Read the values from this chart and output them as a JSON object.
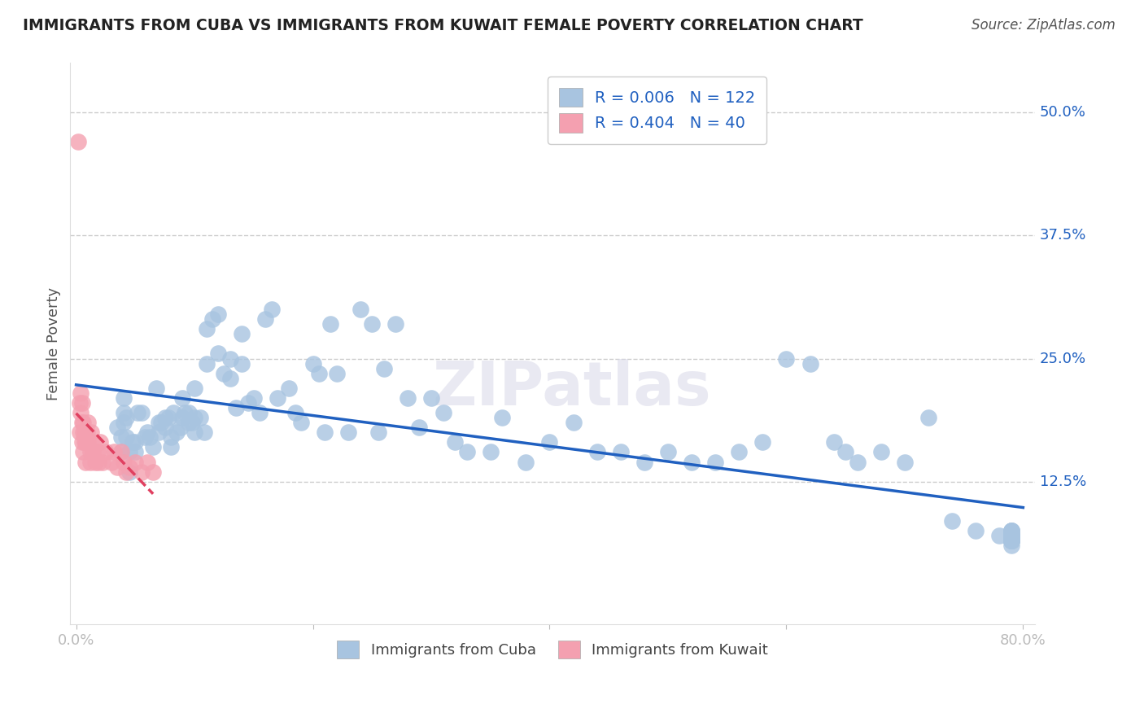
{
  "title": "IMMIGRANTS FROM CUBA VS IMMIGRANTS FROM KUWAIT FEMALE POVERTY CORRELATION CHART",
  "source": "Source: ZipAtlas.com",
  "ylabel": "Female Poverty",
  "xlim": [
    0.0,
    0.8
  ],
  "ylim": [
    -0.02,
    0.55
  ],
  "ytick_values_right": [
    0.5,
    0.375,
    0.25,
    0.125
  ],
  "ytick_labels_right": [
    "50.0%",
    "37.5%",
    "25.0%",
    "12.5%"
  ],
  "grid_color": "#cccccc",
  "background_color": "#ffffff",
  "cuba_color": "#a8c4e0",
  "kuwait_color": "#f4a0b0",
  "cuba_line_color": "#2060c0",
  "kuwait_line_color": "#e04060",
  "cuba_R": 0.006,
  "cuba_N": 122,
  "kuwait_R": 0.404,
  "kuwait_N": 40,
  "legend_label_color": "#2060c0",
  "watermark": "ZIPatlas",
  "cuba_x": [
    0.035,
    0.038,
    0.038,
    0.04,
    0.04,
    0.04,
    0.042,
    0.042,
    0.045,
    0.045,
    0.048,
    0.05,
    0.05,
    0.052,
    0.055,
    0.058,
    0.06,
    0.062,
    0.065,
    0.068,
    0.07,
    0.07,
    0.072,
    0.075,
    0.075,
    0.078,
    0.08,
    0.08,
    0.082,
    0.085,
    0.088,
    0.09,
    0.09,
    0.092,
    0.095,
    0.095,
    0.098,
    0.1,
    0.1,
    0.1,
    0.105,
    0.108,
    0.11,
    0.11,
    0.115,
    0.12,
    0.12,
    0.125,
    0.13,
    0.13,
    0.135,
    0.14,
    0.14,
    0.145,
    0.15,
    0.155,
    0.16,
    0.165,
    0.17,
    0.18,
    0.185,
    0.19,
    0.2,
    0.205,
    0.21,
    0.215,
    0.22,
    0.23,
    0.24,
    0.25,
    0.255,
    0.26,
    0.27,
    0.28,
    0.29,
    0.3,
    0.31,
    0.32,
    0.33,
    0.35,
    0.36,
    0.38,
    0.4,
    0.42,
    0.44,
    0.46,
    0.48,
    0.5,
    0.52,
    0.54,
    0.56,
    0.58,
    0.6,
    0.62,
    0.64,
    0.65,
    0.66,
    0.68,
    0.7,
    0.72,
    0.74,
    0.76,
    0.78,
    0.79,
    0.79,
    0.79,
    0.79,
    0.79,
    0.79,
    0.79,
    0.79,
    0.79,
    0.79,
    0.79,
    0.79,
    0.79,
    0.79,
    0.79,
    0.79,
    0.79,
    0.79,
    0.79
  ],
  "cuba_y": [
    0.18,
    0.17,
    0.155,
    0.21,
    0.195,
    0.185,
    0.19,
    0.17,
    0.155,
    0.135,
    0.165,
    0.165,
    0.155,
    0.195,
    0.195,
    0.17,
    0.175,
    0.17,
    0.16,
    0.22,
    0.185,
    0.175,
    0.185,
    0.19,
    0.18,
    0.19,
    0.17,
    0.16,
    0.195,
    0.175,
    0.18,
    0.21,
    0.19,
    0.195,
    0.195,
    0.185,
    0.185,
    0.22,
    0.19,
    0.175,
    0.19,
    0.175,
    0.28,
    0.245,
    0.29,
    0.295,
    0.255,
    0.235,
    0.25,
    0.23,
    0.2,
    0.275,
    0.245,
    0.205,
    0.21,
    0.195,
    0.29,
    0.3,
    0.21,
    0.22,
    0.195,
    0.185,
    0.245,
    0.235,
    0.175,
    0.285,
    0.235,
    0.175,
    0.3,
    0.285,
    0.175,
    0.24,
    0.285,
    0.21,
    0.18,
    0.21,
    0.195,
    0.165,
    0.155,
    0.155,
    0.19,
    0.145,
    0.165,
    0.185,
    0.155,
    0.155,
    0.145,
    0.155,
    0.145,
    0.145,
    0.155,
    0.165,
    0.25,
    0.245,
    0.165,
    0.155,
    0.145,
    0.155,
    0.145,
    0.19,
    0.085,
    0.075,
    0.07,
    0.075,
    0.07,
    0.075,
    0.065,
    0.07,
    0.06,
    0.075,
    0.065,
    0.07,
    0.065,
    0.07,
    0.065,
    0.07,
    0.075,
    0.065,
    0.07,
    0.065,
    0.07,
    0.065
  ],
  "kuwait_x": [
    0.002,
    0.003,
    0.003,
    0.004,
    0.004,
    0.005,
    0.005,
    0.005,
    0.006,
    0.006,
    0.006,
    0.007,
    0.007,
    0.008,
    0.008,
    0.009,
    0.01,
    0.01,
    0.012,
    0.012,
    0.013,
    0.014,
    0.015,
    0.016,
    0.018,
    0.019,
    0.02,
    0.022,
    0.025,
    0.03,
    0.032,
    0.035,
    0.038,
    0.04,
    0.042,
    0.045,
    0.05,
    0.055,
    0.06,
    0.065
  ],
  "kuwait_y": [
    0.47,
    0.205,
    0.175,
    0.215,
    0.195,
    0.205,
    0.185,
    0.165,
    0.185,
    0.175,
    0.155,
    0.175,
    0.165,
    0.165,
    0.145,
    0.175,
    0.185,
    0.165,
    0.155,
    0.145,
    0.175,
    0.155,
    0.165,
    0.145,
    0.155,
    0.145,
    0.165,
    0.145,
    0.155,
    0.145,
    0.155,
    0.14,
    0.155,
    0.145,
    0.135,
    0.14,
    0.145,
    0.135,
    0.145,
    0.135
  ]
}
